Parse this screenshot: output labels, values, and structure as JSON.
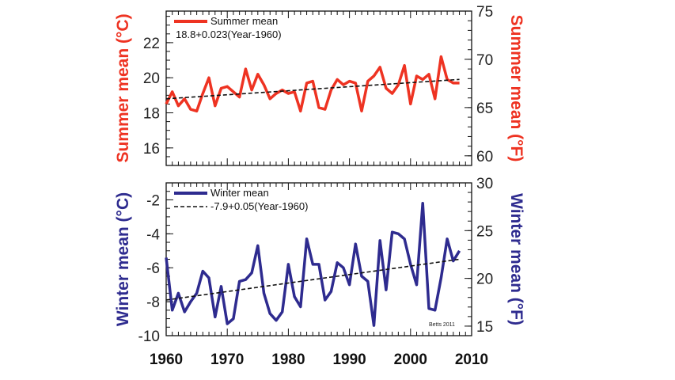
{
  "colors": {
    "summer": "#ee3322",
    "winter": "#2e2b8f",
    "trend": "#111111",
    "axis": "#111111"
  },
  "credit": "Betts 2011",
  "chart_data": [
    {
      "type": "line",
      "x": [
        1960,
        1961,
        1962,
        1963,
        1964,
        1965,
        1966,
        1967,
        1968,
        1969,
        1970,
        1971,
        1972,
        1973,
        1974,
        1975,
        1976,
        1977,
        1978,
        1979,
        1980,
        1981,
        1982,
        1983,
        1984,
        1985,
        1986,
        1987,
        1988,
        1989,
        1990,
        1991,
        1992,
        1993,
        1994,
        1995,
        1996,
        1997,
        1998,
        1999,
        2000,
        2001,
        2002,
        2003,
        2004,
        2005,
        2006,
        2007,
        2008
      ],
      "series": [
        {
          "name": "Summer mean",
          "values": [
            18.5,
            19.2,
            18.4,
            18.8,
            18.2,
            18.1,
            19.1,
            20.0,
            18.4,
            19.4,
            19.5,
            19.2,
            18.9,
            20.5,
            19.3,
            20.2,
            19.6,
            18.8,
            19.1,
            19.3,
            19.1,
            19.2,
            18.1,
            19.7,
            19.8,
            18.3,
            18.2,
            19.3,
            19.9,
            19.6,
            19.8,
            19.7,
            18.1,
            19.8,
            20.1,
            20.6,
            19.4,
            19.1,
            19.6,
            20.7,
            18.5,
            20.1,
            19.9,
            20.2,
            18.8,
            21.2,
            19.9,
            19.7,
            19.7
          ]
        },
        {
          "name": "18.8+0.023(Year-1960)",
          "values": [
            18.8,
            18.823,
            18.846,
            18.869,
            18.892,
            18.915,
            18.938,
            18.961,
            18.984,
            19.007,
            19.03,
            19.053,
            19.076,
            19.099,
            19.122,
            19.145,
            19.168,
            19.191,
            19.214,
            19.237,
            19.26,
            19.283,
            19.306,
            19.329,
            19.352,
            19.375,
            19.398,
            19.421,
            19.444,
            19.467,
            19.49,
            19.513,
            19.536,
            19.559,
            19.582,
            19.605,
            19.628,
            19.651,
            19.674,
            19.697,
            19.72,
            19.743,
            19.766,
            19.789,
            19.812,
            19.835,
            19.858,
            19.881,
            19.904
          ]
        }
      ],
      "xlim": [
        1960,
        2010
      ],
      "ylim": [
        15,
        23.8
      ],
      "yticks": [
        16,
        18,
        20,
        22
      ],
      "ytick_labels": [
        "16",
        "18",
        "20",
        "22"
      ],
      "ylabel": "Summer mean (°C)",
      "ylabel_right": "Summer mean (°F)",
      "y2ticks": [
        60,
        65,
        70,
        75
      ],
      "y2tick_labels": [
        "60",
        "65",
        "70",
        "75"
      ],
      "legend": "top-left"
    },
    {
      "type": "line",
      "x": [
        1960,
        1961,
        1962,
        1963,
        1964,
        1965,
        1966,
        1967,
        1968,
        1969,
        1970,
        1971,
        1972,
        1973,
        1974,
        1975,
        1976,
        1977,
        1978,
        1979,
        1980,
        1981,
        1982,
        1983,
        1984,
        1985,
        1986,
        1987,
        1988,
        1989,
        1990,
        1991,
        1992,
        1993,
        1994,
        1995,
        1996,
        1997,
        1998,
        1999,
        2000,
        2001,
        2002,
        2003,
        2004,
        2005,
        2006,
        2007,
        2008
      ],
      "series": [
        {
          "name": "Winter mean",
          "values": [
            -5.4,
            -8.5,
            -7.5,
            -8.6,
            -8.0,
            -7.5,
            -6.2,
            -6.6,
            -8.9,
            -7.1,
            -9.3,
            -9.0,
            -6.8,
            -6.7,
            -6.3,
            -4.7,
            -7.5,
            -8.7,
            -9.1,
            -8.6,
            -5.8,
            -7.7,
            -8.3,
            -4.3,
            -5.8,
            -5.8,
            -7.9,
            -7.4,
            -5.7,
            -6.0,
            -7.0,
            -4.6,
            -6.5,
            -6.8,
            -9.4,
            -4.4,
            -7.3,
            -3.9,
            -4.0,
            -4.3,
            -5.8,
            -7.0,
            -2.2,
            -8.4,
            -8.5,
            -6.6,
            -4.3,
            -5.6,
            -5.0
          ]
        },
        {
          "name": "-7.9+0.05(Year-1960)",
          "values": [
            -7.9,
            -7.85,
            -7.8,
            -7.75,
            -7.7,
            -7.65,
            -7.6,
            -7.55,
            -7.5,
            -7.45,
            -7.4,
            -7.35,
            -7.3,
            -7.25,
            -7.2,
            -7.15,
            -7.1,
            -7.05,
            -7.0,
            -6.95,
            -6.9,
            -6.85,
            -6.8,
            -6.75,
            -6.7,
            -6.65,
            -6.6,
            -6.55,
            -6.5,
            -6.45,
            -6.4,
            -6.35,
            -6.3,
            -6.25,
            -6.2,
            -6.15,
            -6.1,
            -6.05,
            -6.0,
            -5.95,
            -5.9,
            -5.85,
            -5.8,
            -5.75,
            -5.7,
            -5.65,
            -5.6,
            -5.55,
            -5.5
          ]
        }
      ],
      "xlim": [
        1960,
        2010
      ],
      "xticks": [
        1960,
        1970,
        1980,
        1990,
        2000,
        2010
      ],
      "xtick_labels": [
        "1960",
        "1970",
        "1980",
        "1990",
        "2000",
        "2010"
      ],
      "ylim": [
        -10,
        -1
      ],
      "yticks": [
        -10,
        -8,
        -6,
        -4,
        -2
      ],
      "ytick_labels": [
        "-10",
        "-8",
        "-6",
        "-4",
        "-2"
      ],
      "ylabel": "Winter mean (°C)",
      "ylabel_right": "Winter mean (°F)",
      "y2ticks": [
        15,
        20,
        25,
        30
      ],
      "y2tick_labels": [
        "15",
        "20",
        "25",
        "30"
      ],
      "legend": "top-left"
    }
  ]
}
